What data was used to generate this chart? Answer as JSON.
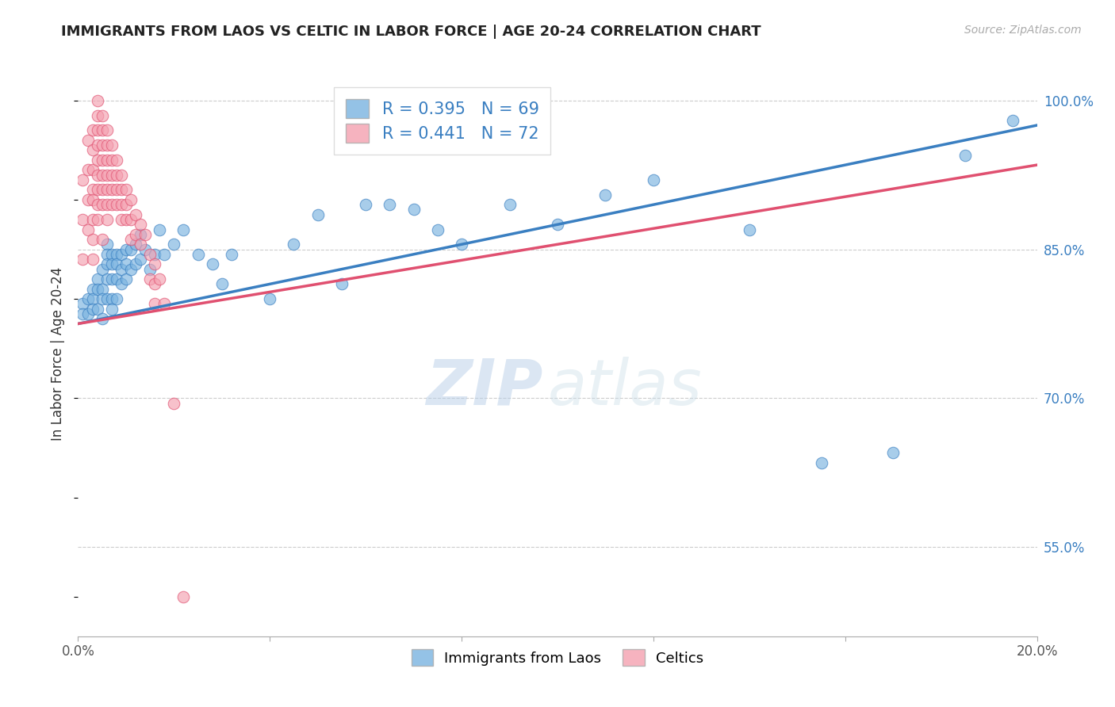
{
  "title": "IMMIGRANTS FROM LAOS VS CELTIC IN LABOR FORCE | AGE 20-24 CORRELATION CHART",
  "source_text": "Source: ZipAtlas.com",
  "ylabel": "In Labor Force | Age 20-24",
  "xlim": [
    0.0,
    0.2
  ],
  "ylim": [
    0.46,
    1.03
  ],
  "xticks": [
    0.0,
    0.04,
    0.08,
    0.12,
    0.16,
    0.2
  ],
  "xticklabels": [
    "0.0%",
    "",
    "",
    "",
    "",
    "20.0%"
  ],
  "yticks_right": [
    0.55,
    0.7,
    0.85,
    1.0
  ],
  "ytick_labels_right": [
    "55.0%",
    "70.0%",
    "85.0%",
    "100.0%"
  ],
  "blue_R": 0.395,
  "blue_N": 69,
  "pink_R": 0.441,
  "pink_N": 72,
  "blue_color": "#7ab3e0",
  "pink_color": "#f4a0b0",
  "blue_line_color": "#3a7fc1",
  "pink_line_color": "#e05070",
  "legend_label_blue": "Immigrants from Laos",
  "legend_label_pink": "Celtics",
  "watermark_zip": "ZIP",
  "watermark_atlas": "atlas",
  "blue_line_x0": 0.0,
  "blue_line_y0": 0.775,
  "blue_line_x1": 0.2,
  "blue_line_y1": 0.975,
  "pink_line_x0": 0.0,
  "pink_line_y0": 0.775,
  "pink_line_x1": 0.2,
  "pink_line_y1": 0.935,
  "blue_scatter_x": [
    0.001,
    0.001,
    0.002,
    0.002,
    0.003,
    0.003,
    0.003,
    0.004,
    0.004,
    0.004,
    0.005,
    0.005,
    0.005,
    0.005,
    0.006,
    0.006,
    0.006,
    0.006,
    0.006,
    0.007,
    0.007,
    0.007,
    0.007,
    0.007,
    0.008,
    0.008,
    0.008,
    0.008,
    0.009,
    0.009,
    0.009,
    0.01,
    0.01,
    0.01,
    0.011,
    0.011,
    0.012,
    0.012,
    0.013,
    0.013,
    0.014,
    0.015,
    0.016,
    0.017,
    0.018,
    0.02,
    0.022,
    0.025,
    0.028,
    0.03,
    0.032,
    0.04,
    0.045,
    0.05,
    0.055,
    0.06,
    0.065,
    0.07,
    0.075,
    0.08,
    0.09,
    0.1,
    0.11,
    0.12,
    0.14,
    0.155,
    0.17,
    0.185,
    0.195
  ],
  "blue_scatter_y": [
    0.795,
    0.785,
    0.8,
    0.785,
    0.81,
    0.8,
    0.79,
    0.82,
    0.81,
    0.79,
    0.83,
    0.81,
    0.8,
    0.78,
    0.855,
    0.845,
    0.835,
    0.82,
    0.8,
    0.845,
    0.835,
    0.82,
    0.8,
    0.79,
    0.845,
    0.835,
    0.82,
    0.8,
    0.845,
    0.83,
    0.815,
    0.85,
    0.835,
    0.82,
    0.85,
    0.83,
    0.855,
    0.835,
    0.865,
    0.84,
    0.85,
    0.83,
    0.845,
    0.87,
    0.845,
    0.855,
    0.87,
    0.845,
    0.835,
    0.815,
    0.845,
    0.8,
    0.855,
    0.885,
    0.815,
    0.895,
    0.895,
    0.89,
    0.87,
    0.855,
    0.895,
    0.875,
    0.905,
    0.92,
    0.87,
    0.635,
    0.645,
    0.945,
    0.98
  ],
  "pink_scatter_x": [
    0.001,
    0.001,
    0.001,
    0.002,
    0.002,
    0.002,
    0.002,
    0.003,
    0.003,
    0.003,
    0.003,
    0.003,
    0.003,
    0.003,
    0.003,
    0.004,
    0.004,
    0.004,
    0.004,
    0.004,
    0.004,
    0.004,
    0.004,
    0.004,
    0.005,
    0.005,
    0.005,
    0.005,
    0.005,
    0.005,
    0.005,
    0.005,
    0.006,
    0.006,
    0.006,
    0.006,
    0.006,
    0.006,
    0.006,
    0.007,
    0.007,
    0.007,
    0.007,
    0.007,
    0.008,
    0.008,
    0.008,
    0.008,
    0.009,
    0.009,
    0.009,
    0.009,
    0.01,
    0.01,
    0.01,
    0.011,
    0.011,
    0.011,
    0.012,
    0.012,
    0.013,
    0.013,
    0.014,
    0.015,
    0.015,
    0.016,
    0.016,
    0.016,
    0.017,
    0.018,
    0.02,
    0.022
  ],
  "pink_scatter_y": [
    0.92,
    0.88,
    0.84,
    0.96,
    0.93,
    0.9,
    0.87,
    0.97,
    0.95,
    0.93,
    0.91,
    0.9,
    0.88,
    0.86,
    0.84,
    1.0,
    0.985,
    0.97,
    0.955,
    0.94,
    0.925,
    0.91,
    0.895,
    0.88,
    0.985,
    0.97,
    0.955,
    0.94,
    0.925,
    0.91,
    0.895,
    0.86,
    0.97,
    0.955,
    0.94,
    0.925,
    0.91,
    0.895,
    0.88,
    0.955,
    0.94,
    0.925,
    0.91,
    0.895,
    0.94,
    0.925,
    0.91,
    0.895,
    0.925,
    0.91,
    0.895,
    0.88,
    0.91,
    0.895,
    0.88,
    0.9,
    0.88,
    0.86,
    0.885,
    0.865,
    0.875,
    0.855,
    0.865,
    0.845,
    0.82,
    0.835,
    0.815,
    0.795,
    0.82,
    0.795,
    0.695,
    0.5
  ]
}
